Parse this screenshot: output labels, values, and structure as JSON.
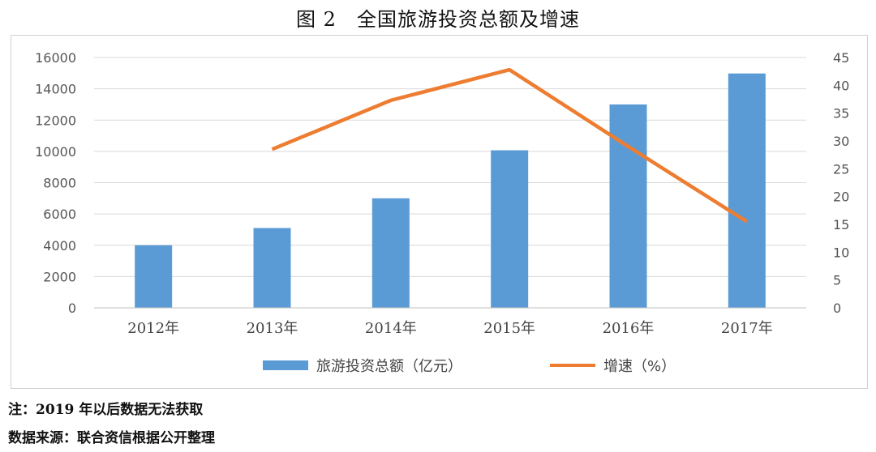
{
  "figure": {
    "title": "图 2　全国旅游投资总额及增速"
  },
  "chart_data": {
    "type": "bar",
    "categories": [
      "2012年",
      "2013年",
      "2014年",
      "2015年",
      "2016年",
      "2017年"
    ],
    "series": [
      {
        "name": "旅游投资总额（亿元）",
        "type": "bar",
        "axis": "left",
        "values": [
          4000,
          5100,
          7000,
          10070,
          13000,
          14980
        ]
      },
      {
        "name": "增速（%）",
        "type": "line",
        "axis": "right",
        "values": [
          null,
          28.5,
          37.3,
          42.8,
          29.0,
          15.5
        ]
      }
    ],
    "y_left": {
      "min": 0,
      "max": 16000,
      "step": 2000,
      "ticks": [
        "0",
        "2000",
        "4000",
        "6000",
        "8000",
        "10000",
        "12000",
        "14000",
        "16000"
      ]
    },
    "y_right": {
      "min": 0,
      "max": 45,
      "step": 5,
      "ticks": [
        "0",
        "5",
        "10",
        "15",
        "20",
        "25",
        "30",
        "35",
        "40",
        "45"
      ]
    },
    "grid": true,
    "legend_position": "bottom",
    "colors": {
      "bar": "#5b9bd5",
      "line": "#ed7d31",
      "grid": "#d9d9d9"
    }
  },
  "notes": {
    "note1": "注：2019 年以后数据无法获取",
    "source": "数据来源：联合资信根据公开整理"
  }
}
